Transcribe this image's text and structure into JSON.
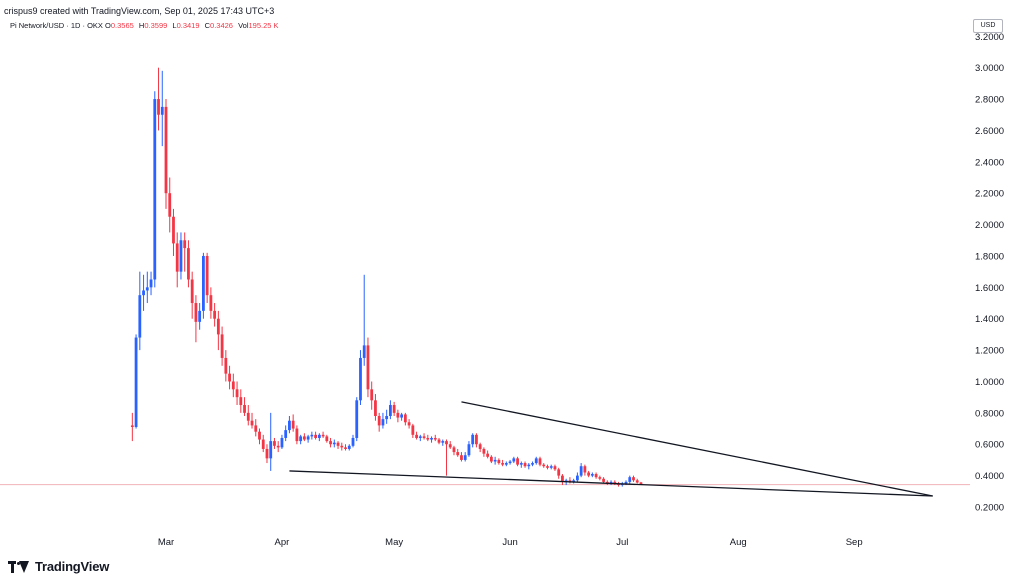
{
  "header": {
    "attribution": "crispus9 created with TradingView.com, Sep 01, 2025 17:43 UTC+3",
    "symbol": "Pi Network/USD · 1D · OKX",
    "ohlc": [
      {
        "k": "O",
        "v": "0.3565"
      },
      {
        "k": "H",
        "v": "0.3599"
      },
      {
        "k": "L",
        "v": "0.3419"
      },
      {
        "k": "C",
        "v": "0.3426"
      }
    ],
    "vol_label": "Vol",
    "vol_value": "195.25 K"
  },
  "axis": {
    "currency": "USD",
    "y_ticks": [
      "3.2000",
      "3.0000",
      "2.8000",
      "2.6000",
      "2.4000",
      "2.2000",
      "2.0000",
      "1.8000",
      "1.6000",
      "1.4000",
      "1.2000",
      "1.0000",
      "0.8000",
      "0.6000",
      "0.4000",
      "0.2000"
    ],
    "x_ticks": [
      "Mar",
      "Apr",
      "May",
      "Jun",
      "Jul",
      "Aug",
      "Sep"
    ]
  },
  "brand": {
    "name": "TradingView"
  },
  "colors": {
    "up": "#2962ff",
    "down": "#f23645",
    "trendline": "#131722",
    "price_line": "#f0b3b8"
  },
  "chart_data": {
    "type": "candlestick",
    "ylim": [
      0.1,
      3.25
    ],
    "x_start": "2025-02-20",
    "current_price": 0.3426,
    "candles": [
      [
        0.72,
        0.8,
        0.62,
        0.71
      ],
      [
        0.71,
        1.3,
        0.7,
        1.28
      ],
      [
        1.28,
        1.7,
        1.2,
        1.55
      ],
      [
        1.55,
        1.68,
        1.45,
        1.58
      ],
      [
        1.58,
        1.7,
        1.5,
        1.6
      ],
      [
        1.6,
        1.7,
        1.55,
        1.65
      ],
      [
        1.65,
        2.85,
        1.6,
        2.8
      ],
      [
        2.8,
        3.0,
        2.6,
        2.7
      ],
      [
        2.7,
        2.98,
        2.5,
        2.75
      ],
      [
        2.75,
        2.8,
        2.1,
        2.2
      ],
      [
        2.2,
        2.3,
        1.95,
        2.05
      ],
      [
        2.05,
        2.1,
        1.8,
        1.88
      ],
      [
        1.88,
        1.95,
        1.6,
        1.7
      ],
      [
        1.7,
        1.95,
        1.65,
        1.9
      ],
      [
        1.9,
        1.95,
        1.7,
        1.85
      ],
      [
        1.85,
        1.9,
        1.6,
        1.65
      ],
      [
        1.65,
        1.7,
        1.4,
        1.5
      ],
      [
        1.5,
        1.55,
        1.25,
        1.38
      ],
      [
        1.38,
        1.5,
        1.33,
        1.45
      ],
      [
        1.45,
        1.82,
        1.4,
        1.8
      ],
      [
        1.8,
        1.82,
        1.5,
        1.55
      ],
      [
        1.55,
        1.6,
        1.4,
        1.45
      ],
      [
        1.45,
        1.5,
        1.35,
        1.4
      ],
      [
        1.4,
        1.45,
        1.2,
        1.3
      ],
      [
        1.3,
        1.35,
        1.1,
        1.15
      ],
      [
        1.15,
        1.2,
        1.0,
        1.05
      ],
      [
        1.05,
        1.1,
        0.95,
        1.0
      ],
      [
        1.0,
        1.05,
        0.9,
        0.95
      ],
      [
        0.95,
        1.0,
        0.85,
        0.9
      ],
      [
        0.9,
        0.95,
        0.8,
        0.85
      ],
      [
        0.85,
        0.9,
        0.78,
        0.8
      ],
      [
        0.8,
        0.85,
        0.72,
        0.75
      ],
      [
        0.75,
        0.8,
        0.7,
        0.72
      ],
      [
        0.72,
        0.76,
        0.65,
        0.68
      ],
      [
        0.68,
        0.7,
        0.6,
        0.63
      ],
      [
        0.63,
        0.66,
        0.55,
        0.57
      ],
      [
        0.57,
        0.6,
        0.48,
        0.51
      ],
      [
        0.51,
        0.8,
        0.43,
        0.62
      ],
      [
        0.62,
        0.64,
        0.57,
        0.59
      ],
      [
        0.59,
        0.62,
        0.55,
        0.58
      ],
      [
        0.58,
        0.66,
        0.57,
        0.64
      ],
      [
        0.64,
        0.72,
        0.62,
        0.69
      ],
      [
        0.69,
        0.78,
        0.67,
        0.75
      ],
      [
        0.75,
        0.79,
        0.68,
        0.7
      ],
      [
        0.7,
        0.72,
        0.6,
        0.62
      ],
      [
        0.62,
        0.66,
        0.6,
        0.65
      ],
      [
        0.65,
        0.67,
        0.62,
        0.63
      ],
      [
        0.63,
        0.66,
        0.61,
        0.65
      ],
      [
        0.65,
        0.68,
        0.63,
        0.66
      ],
      [
        0.66,
        0.68,
        0.63,
        0.64
      ],
      [
        0.64,
        0.67,
        0.62,
        0.66
      ],
      [
        0.66,
        0.68,
        0.64,
        0.65
      ],
      [
        0.65,
        0.66,
        0.61,
        0.62
      ],
      [
        0.62,
        0.64,
        0.58,
        0.6
      ],
      [
        0.6,
        0.63,
        0.58,
        0.61
      ],
      [
        0.61,
        0.62,
        0.57,
        0.59
      ],
      [
        0.59,
        0.61,
        0.56,
        0.58
      ],
      [
        0.58,
        0.6,
        0.56,
        0.57
      ],
      [
        0.57,
        0.6,
        0.56,
        0.59
      ],
      [
        0.59,
        0.66,
        0.58,
        0.64
      ],
      [
        0.64,
        0.9,
        0.62,
        0.88
      ],
      [
        0.88,
        1.2,
        0.85,
        1.15
      ],
      [
        1.15,
        1.68,
        1.1,
        1.23
      ],
      [
        1.23,
        1.28,
        0.9,
        0.95
      ],
      [
        0.95,
        1.0,
        0.82,
        0.88
      ],
      [
        0.88,
        0.92,
        0.75,
        0.78
      ],
      [
        0.78,
        0.8,
        0.68,
        0.72
      ],
      [
        0.72,
        0.8,
        0.7,
        0.76
      ],
      [
        0.76,
        0.82,
        0.73,
        0.78
      ],
      [
        0.78,
        0.88,
        0.76,
        0.85
      ],
      [
        0.85,
        0.87,
        0.78,
        0.8
      ],
      [
        0.8,
        0.82,
        0.74,
        0.77
      ],
      [
        0.77,
        0.8,
        0.75,
        0.79
      ],
      [
        0.79,
        0.8,
        0.72,
        0.74
      ],
      [
        0.74,
        0.76,
        0.7,
        0.72
      ],
      [
        0.72,
        0.73,
        0.64,
        0.66
      ],
      [
        0.66,
        0.68,
        0.63,
        0.64
      ],
      [
        0.64,
        0.66,
        0.62,
        0.65
      ],
      [
        0.65,
        0.67,
        0.63,
        0.64
      ],
      [
        0.64,
        0.66,
        0.62,
        0.63
      ],
      [
        0.63,
        0.65,
        0.61,
        0.64
      ],
      [
        0.64,
        0.66,
        0.62,
        0.63
      ],
      [
        0.63,
        0.64,
        0.6,
        0.61
      ],
      [
        0.61,
        0.63,
        0.59,
        0.62
      ],
      [
        0.62,
        0.63,
        0.4,
        0.6
      ],
      [
        0.6,
        0.62,
        0.57,
        0.58
      ],
      [
        0.58,
        0.59,
        0.53,
        0.55
      ],
      [
        0.55,
        0.57,
        0.52,
        0.53
      ],
      [
        0.53,
        0.55,
        0.49,
        0.5
      ],
      [
        0.5,
        0.55,
        0.49,
        0.53
      ],
      [
        0.53,
        0.62,
        0.52,
        0.6
      ],
      [
        0.6,
        0.67,
        0.58,
        0.66
      ],
      [
        0.66,
        0.67,
        0.58,
        0.6
      ],
      [
        0.6,
        0.61,
        0.55,
        0.57
      ],
      [
        0.57,
        0.58,
        0.52,
        0.54
      ],
      [
        0.54,
        0.56,
        0.51,
        0.52
      ],
      [
        0.52,
        0.53,
        0.48,
        0.49
      ],
      [
        0.49,
        0.52,
        0.47,
        0.5
      ],
      [
        0.5,
        0.51,
        0.47,
        0.48
      ],
      [
        0.48,
        0.5,
        0.46,
        0.47
      ],
      [
        0.47,
        0.49,
        0.46,
        0.48
      ],
      [
        0.48,
        0.5,
        0.47,
        0.49
      ],
      [
        0.49,
        0.52,
        0.48,
        0.51
      ],
      [
        0.51,
        0.52,
        0.46,
        0.47
      ],
      [
        0.47,
        0.49,
        0.45,
        0.48
      ],
      [
        0.48,
        0.49,
        0.45,
        0.46
      ],
      [
        0.46,
        0.48,
        0.44,
        0.47
      ],
      [
        0.47,
        0.49,
        0.46,
        0.48
      ],
      [
        0.48,
        0.52,
        0.47,
        0.51
      ],
      [
        0.51,
        0.52,
        0.46,
        0.47
      ],
      [
        0.47,
        0.48,
        0.45,
        0.46
      ],
      [
        0.46,
        0.47,
        0.44,
        0.45
      ],
      [
        0.45,
        0.47,
        0.44,
        0.46
      ],
      [
        0.46,
        0.47,
        0.43,
        0.44
      ],
      [
        0.44,
        0.45,
        0.38,
        0.4
      ],
      [
        0.4,
        0.41,
        0.34,
        0.36
      ],
      [
        0.36,
        0.38,
        0.34,
        0.37
      ],
      [
        0.37,
        0.39,
        0.35,
        0.36
      ],
      [
        0.36,
        0.38,
        0.35,
        0.37
      ],
      [
        0.37,
        0.42,
        0.36,
        0.4
      ],
      [
        0.4,
        0.48,
        0.39,
        0.46
      ],
      [
        0.46,
        0.47,
        0.4,
        0.42
      ],
      [
        0.42,
        0.43,
        0.39,
        0.4
      ],
      [
        0.4,
        0.42,
        0.39,
        0.41
      ],
      [
        0.41,
        0.42,
        0.38,
        0.39
      ],
      [
        0.39,
        0.4,
        0.37,
        0.38
      ],
      [
        0.38,
        0.39,
        0.35,
        0.36
      ],
      [
        0.36,
        0.37,
        0.34,
        0.35
      ],
      [
        0.35,
        0.37,
        0.34,
        0.36
      ],
      [
        0.36,
        0.37,
        0.34,
        0.35
      ],
      [
        0.35,
        0.36,
        0.33,
        0.34
      ],
      [
        0.34,
        0.36,
        0.33,
        0.35
      ],
      [
        0.35,
        0.37,
        0.34,
        0.36
      ],
      [
        0.36,
        0.4,
        0.35,
        0.39
      ],
      [
        0.39,
        0.4,
        0.36,
        0.37
      ],
      [
        0.37,
        0.38,
        0.35,
        0.356
      ],
      [
        0.3565,
        0.3599,
        0.3419,
        0.3426
      ]
    ],
    "trendlines": [
      {
        "from": [
          "2025-05-19",
          0.87
        ],
        "to": [
          "2025-09-22",
          0.27
        ]
      },
      {
        "from": [
          "2025-04-03",
          0.43
        ],
        "to": [
          "2025-09-22",
          0.27
        ]
      }
    ]
  }
}
